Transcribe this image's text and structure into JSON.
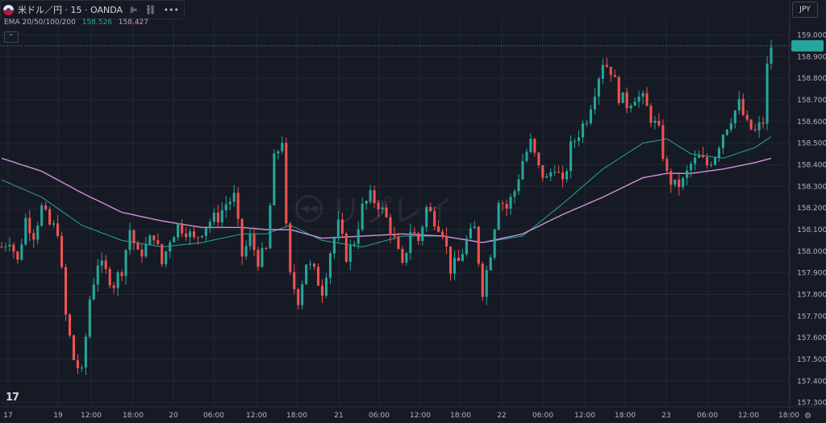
{
  "header": {
    "symbol_title": "米ドル／円 · 15 · OANDA",
    "icons": [
      "bar-type-icon",
      "link-icon",
      "more-icon"
    ]
  },
  "indicator": {
    "label": "EMA 20/50/100/200",
    "value_1": "158.526",
    "value_2": "158.427",
    "color_1": "#26a69a",
    "color_2": "#ce93d8"
  },
  "currency": "JPY",
  "colors": {
    "up": "#26a69a",
    "down": "#ef5350",
    "background": "#161a25",
    "grid": "#232733"
  },
  "chart_data": {
    "type": "candlestick",
    "ylim": [
      157.28,
      159.08
    ],
    "y_ticks": [
      "159.000",
      "158.900",
      "158.800",
      "158.700",
      "158.600",
      "158.500",
      "158.400",
      "158.300",
      "158.200",
      "158.100",
      "158.000",
      "157.900",
      "157.800",
      "157.700",
      "157.600",
      "157.500",
      "157.400",
      "157.300"
    ],
    "x_tick_labels": [
      "17",
      "19",
      "12:00",
      "18:00",
      "20",
      "06:00",
      "12:00",
      "18:00",
      "21",
      "06:00",
      "12:00",
      "18:00",
      "22",
      "06:00",
      "12:00",
      "18:00",
      "23",
      "06:00",
      "12:00",
      "18:00"
    ],
    "price_path": [
      [
        0,
        158.02
      ],
      [
        2,
        158.06
      ],
      [
        4,
        157.95
      ],
      [
        6,
        158.15
      ],
      [
        8,
        158.08
      ],
      [
        10,
        158.2
      ],
      [
        12,
        158.12
      ],
      [
        14,
        158.1
      ],
      [
        16,
        157.7
      ],
      [
        18,
        157.5
      ],
      [
        20,
        157.43
      ],
      [
        22,
        157.78
      ],
      [
        24,
        157.95
      ],
      [
        26,
        157.9
      ],
      [
        28,
        157.85
      ],
      [
        30,
        157.92
      ],
      [
        32,
        158.1
      ],
      [
        34,
        157.98
      ],
      [
        36,
        158.02
      ],
      [
        38,
        158.08
      ],
      [
        40,
        157.94
      ],
      [
        42,
        158.06
      ],
      [
        44,
        158.12
      ],
      [
        46,
        158.1
      ],
      [
        48,
        158.05
      ],
      [
        50,
        158.1
      ],
      [
        52,
        158.14
      ],
      [
        54,
        158.16
      ],
      [
        56,
        158.22
      ],
      [
        58,
        158.25
      ],
      [
        60,
        157.98
      ],
      [
        62,
        158.06
      ],
      [
        64,
        157.96
      ],
      [
        66,
        158.0
      ],
      [
        68,
        158.42
      ],
      [
        70,
        158.52
      ],
      [
        71,
        158.1
      ],
      [
        72,
        157.88
      ],
      [
        74,
        157.78
      ],
      [
        76,
        157.95
      ],
      [
        78,
        157.9
      ],
      [
        80,
        157.82
      ],
      [
        82,
        158.0
      ],
      [
        84,
        158.12
      ],
      [
        86,
        157.98
      ],
      [
        88,
        158.05
      ],
      [
        90,
        158.2
      ],
      [
        92,
        158.25
      ],
      [
        94,
        158.22
      ],
      [
        96,
        158.15
      ],
      [
        98,
        158.05
      ],
      [
        100,
        157.92
      ],
      [
        102,
        158.1
      ],
      [
        104,
        158.05
      ],
      [
        106,
        158.2
      ],
      [
        108,
        158.15
      ],
      [
        110,
        158.1
      ],
      [
        112,
        157.92
      ],
      [
        114,
        157.95
      ],
      [
        116,
        158.05
      ],
      [
        118,
        158.1
      ],
      [
        120,
        157.82
      ],
      [
        122,
        158.0
      ],
      [
        124,
        158.25
      ],
      [
        126,
        158.2
      ],
      [
        128,
        158.28
      ],
      [
        130,
        158.42
      ],
      [
        132,
        158.5
      ],
      [
        134,
        158.38
      ],
      [
        136,
        158.33
      ],
      [
        138,
        158.4
      ],
      [
        140,
        158.3
      ],
      [
        142,
        158.48
      ],
      [
        144,
        158.55
      ],
      [
        146,
        158.62
      ],
      [
        148,
        158.75
      ],
      [
        150,
        158.88
      ],
      [
        152,
        158.84
      ],
      [
        154,
        158.72
      ],
      [
        156,
        158.68
      ],
      [
        158,
        158.72
      ],
      [
        160,
        158.7
      ],
      [
        162,
        158.62
      ],
      [
        164,
        158.55
      ],
      [
        166,
        158.35
      ],
      [
        168,
        158.3
      ],
      [
        170,
        158.32
      ],
      [
        172,
        158.4
      ],
      [
        174,
        158.43
      ],
      [
        176,
        158.4
      ],
      [
        178,
        158.45
      ],
      [
        180,
        158.55
      ],
      [
        182,
        158.62
      ],
      [
        184,
        158.68
      ],
      [
        186,
        158.58
      ],
      [
        188,
        158.55
      ],
      [
        190,
        158.6
      ],
      [
        191,
        158.85
      ],
      [
        192,
        158.95
      ]
    ],
    "ema_a_path": [
      [
        0,
        158.33
      ],
      [
        10,
        158.25
      ],
      [
        20,
        158.12
      ],
      [
        30,
        158.05
      ],
      [
        40,
        158.02
      ],
      [
        50,
        158.04
      ],
      [
        60,
        158.08
      ],
      [
        66,
        158.08
      ],
      [
        72,
        158.12
      ],
      [
        80,
        158.05
      ],
      [
        90,
        158.02
      ],
      [
        100,
        158.07
      ],
      [
        110,
        158.07
      ],
      [
        120,
        158.04
      ],
      [
        130,
        158.07
      ],
      [
        140,
        158.22
      ],
      [
        150,
        158.38
      ],
      [
        160,
        158.5
      ],
      [
        166,
        158.52
      ],
      [
        172,
        158.45
      ],
      [
        180,
        158.43
      ],
      [
        188,
        158.48
      ],
      [
        192,
        158.53
      ]
    ],
    "ema_b_path": [
      [
        0,
        158.43
      ],
      [
        10,
        158.37
      ],
      [
        20,
        158.27
      ],
      [
        30,
        158.18
      ],
      [
        40,
        158.14
      ],
      [
        50,
        158.11
      ],
      [
        60,
        158.11
      ],
      [
        66,
        158.1
      ],
      [
        72,
        158.1
      ],
      [
        80,
        158.06
      ],
      [
        90,
        158.07
      ],
      [
        100,
        158.08
      ],
      [
        110,
        158.07
      ],
      [
        120,
        158.04
      ],
      [
        130,
        158.08
      ],
      [
        140,
        158.17
      ],
      [
        150,
        158.25
      ],
      [
        160,
        158.34
      ],
      [
        166,
        158.36
      ],
      [
        172,
        158.36
      ],
      [
        180,
        158.38
      ],
      [
        188,
        158.41
      ],
      [
        192,
        158.43
      ]
    ]
  }
}
